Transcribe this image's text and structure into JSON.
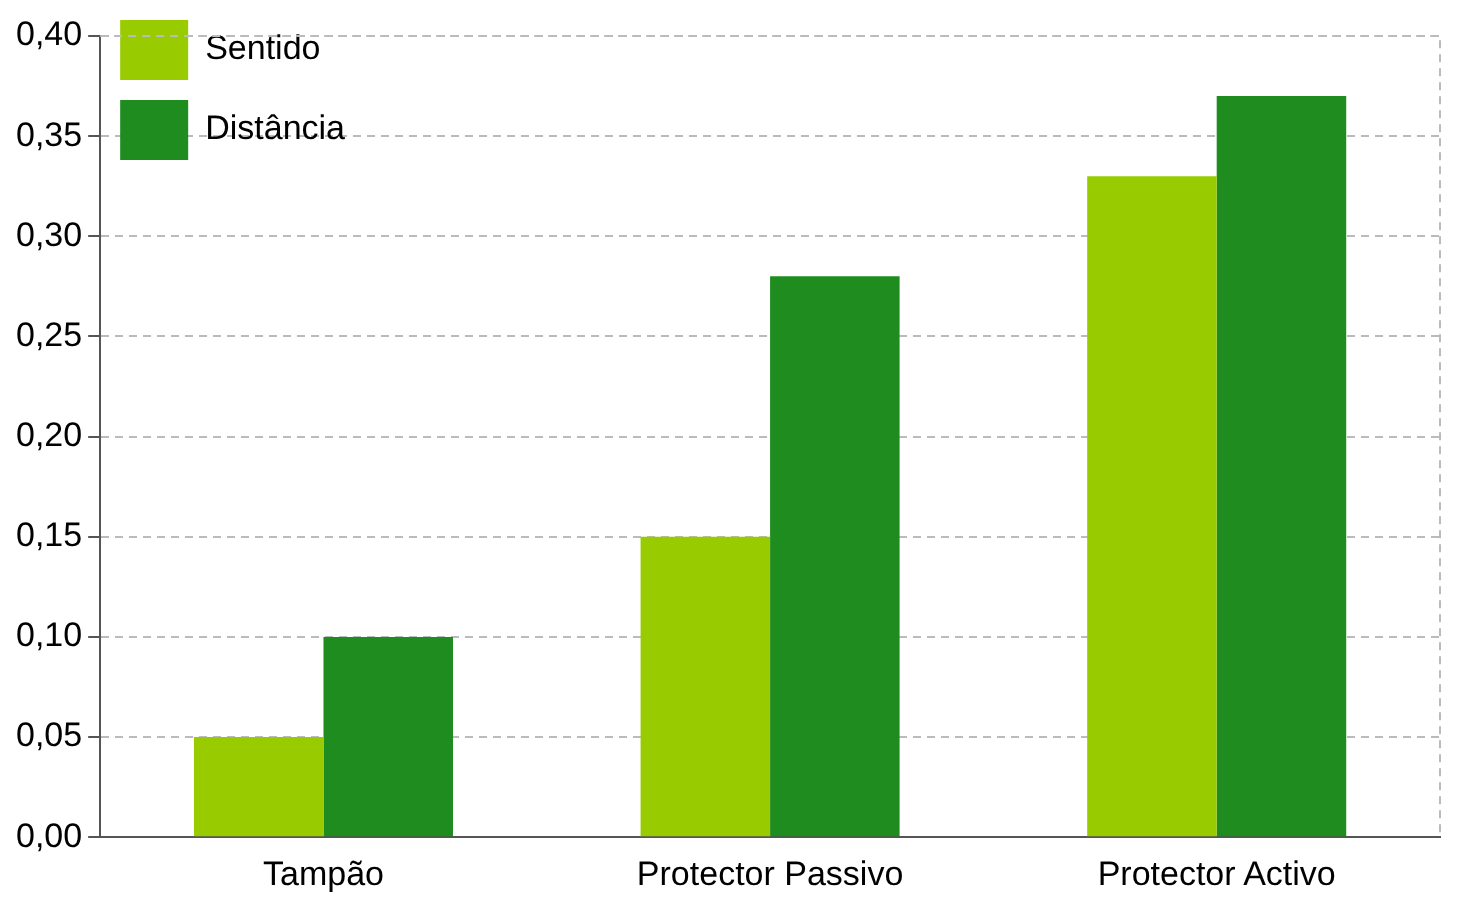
{
  "chart_data": {
    "type": "bar",
    "categories": [
      "Tampão",
      "Protector Passivo",
      "Protector Activo"
    ],
    "series": [
      {
        "name": "Sentido",
        "color": "#99cc00",
        "values": [
          0.05,
          0.15,
          0.33
        ]
      },
      {
        "name": "Distância",
        "color": "#1e8c1e",
        "values": [
          0.1,
          0.28,
          0.37
        ]
      }
    ],
    "ylim": [
      0,
      0.4
    ],
    "yticks": [
      {
        "value": 0,
        "label": "0,00"
      },
      {
        "value": 0.05,
        "label": "0,05"
      },
      {
        "value": 0.1,
        "label": "0,10"
      },
      {
        "value": 0.15,
        "label": "0,15"
      },
      {
        "value": 0.2,
        "label": "0,20"
      },
      {
        "value": 0.25,
        "label": "0,25"
      },
      {
        "value": 0.3,
        "label": "0,30"
      },
      {
        "value": 0.35,
        "label": "0,35"
      },
      {
        "value": 0.4,
        "label": "0,40"
      }
    ],
    "grid": "y",
    "legend": "top left"
  }
}
